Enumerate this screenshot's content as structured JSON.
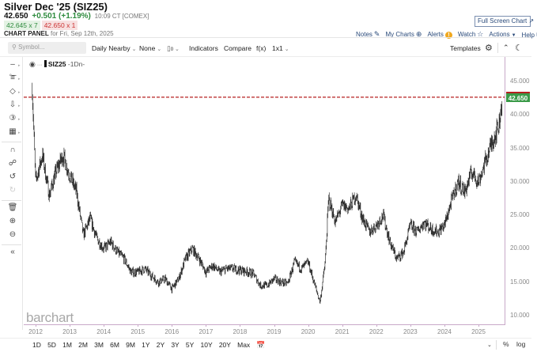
{
  "header": {
    "title": "Silver Dec '25 (SIZ25)",
    "last": "42.650",
    "change": "+0.501 (+1.19%)",
    "time": "10:09 CT [COMEX]",
    "bid": "42.645 x 7",
    "ask": "42.650 x 1",
    "panel_label": "CHART PANEL",
    "panel_date": "for Fri, Sep 12th, 2025",
    "fullscreen_label": "Full Screen Chart",
    "links": {
      "notes": "Notes",
      "my_charts": "My Charts",
      "alerts": "Alerts",
      "watch": "Watch",
      "actions": "Actions",
      "help": "Help"
    }
  },
  "toolbar": {
    "search_placeholder": "Symbol...",
    "period": "Daily Nearby",
    "overlay": "None",
    "bars_icon_label": "0",
    "indicators": "Indicators",
    "compare": "Compare",
    "fx": "f(x)",
    "layout": "1x1",
    "templates": "Templates"
  },
  "legend": {
    "symbol": "SIZ25",
    "interval": "-1Dn-"
  },
  "watermark": "barchart",
  "price_tag": "42.650",
  "colors": {
    "up": "#2e8b3e",
    "down": "#c33333",
    "price_tag_bg": "#3a9a48",
    "price_line": "#b52020",
    "axis": "#c8a9c9",
    "link": "#2a4a7a"
  },
  "range_buttons": [
    "1D",
    "5D",
    "1M",
    "2M",
    "3M",
    "6M",
    "9M",
    "1Y",
    "2Y",
    "3Y",
    "5Y",
    "10Y",
    "20Y",
    "Max"
  ],
  "bottom_right": {
    "percent": "%",
    "log": "log"
  },
  "chart_data": {
    "type": "line",
    "title": "Silver Dec '25 (SIZ25) Daily Nearby",
    "xlabel": "",
    "ylabel": "",
    "x": [
      "2011.9",
      "2012.0",
      "2012.2",
      "2012.4",
      "2012.6",
      "2012.8",
      "2013.0",
      "2013.2",
      "2013.4",
      "2013.6",
      "2013.8",
      "2014.0",
      "2014.2",
      "2014.4",
      "2014.6",
      "2014.8",
      "2015.0",
      "2015.2",
      "2015.4",
      "2015.6",
      "2015.8",
      "2016.0",
      "2016.2",
      "2016.4",
      "2016.6",
      "2016.8",
      "2017.0",
      "2017.2",
      "2017.4",
      "2017.6",
      "2017.8",
      "2018.0",
      "2018.2",
      "2018.4",
      "2018.6",
      "2018.8",
      "2019.0",
      "2019.2",
      "2019.4",
      "2019.6",
      "2019.8",
      "2020.0",
      "2020.2",
      "2020.35",
      "2020.5",
      "2020.6",
      "2020.8",
      "2021.0",
      "2021.2",
      "2021.4",
      "2021.6",
      "2021.8",
      "2022.0",
      "2022.2",
      "2022.4",
      "2022.6",
      "2022.8",
      "2023.0",
      "2023.2",
      "2023.4",
      "2023.6",
      "2023.8",
      "2024.0",
      "2024.2",
      "2024.4",
      "2024.6",
      "2024.8",
      "2025.0",
      "2025.2",
      "2025.4",
      "2025.6",
      "2025.7"
    ],
    "series": [
      {
        "name": "SIZ25",
        "values": [
          44.0,
          30.0,
          34.0,
          28.0,
          31.5,
          34.0,
          31.0,
          28.5,
          22.0,
          24.5,
          21.5,
          20.0,
          21.0,
          19.5,
          18.5,
          16.5,
          16.5,
          17.0,
          16.0,
          15.0,
          15.5,
          14.0,
          15.5,
          18.5,
          20.0,
          18.5,
          16.5,
          17.5,
          16.5,
          17.0,
          17.0,
          16.8,
          16.6,
          16.2,
          14.5,
          14.5,
          15.5,
          15.0,
          14.8,
          18.0,
          17.0,
          18.0,
          14.5,
          12.0,
          18.0,
          27.5,
          24.0,
          26.5,
          26.0,
          28.0,
          24.5,
          22.5,
          23.5,
          25.0,
          21.0,
          18.5,
          19.5,
          23.5,
          22.5,
          24.0,
          23.0,
          22.5,
          23.5,
          27.0,
          30.0,
          28.5,
          31.5,
          30.0,
          33.0,
          36.0,
          38.5,
          42.65
        ]
      }
    ],
    "ylim": [
      10,
      45
    ],
    "yticks": [
      "45.000",
      "40.000",
      "35.000",
      "30.000",
      "25.000",
      "20.000",
      "15.000",
      "10.000"
    ],
    "xticks": [
      "2012",
      "2013",
      "2014",
      "2015",
      "2016",
      "2017",
      "2018",
      "2019",
      "2020",
      "2021",
      "2022",
      "2023",
      "2024",
      "2025"
    ],
    "reference_line": {
      "value": 42.65,
      "style": "dashed",
      "color": "#b52020"
    },
    "grid": false,
    "legend_position": "top-left"
  }
}
